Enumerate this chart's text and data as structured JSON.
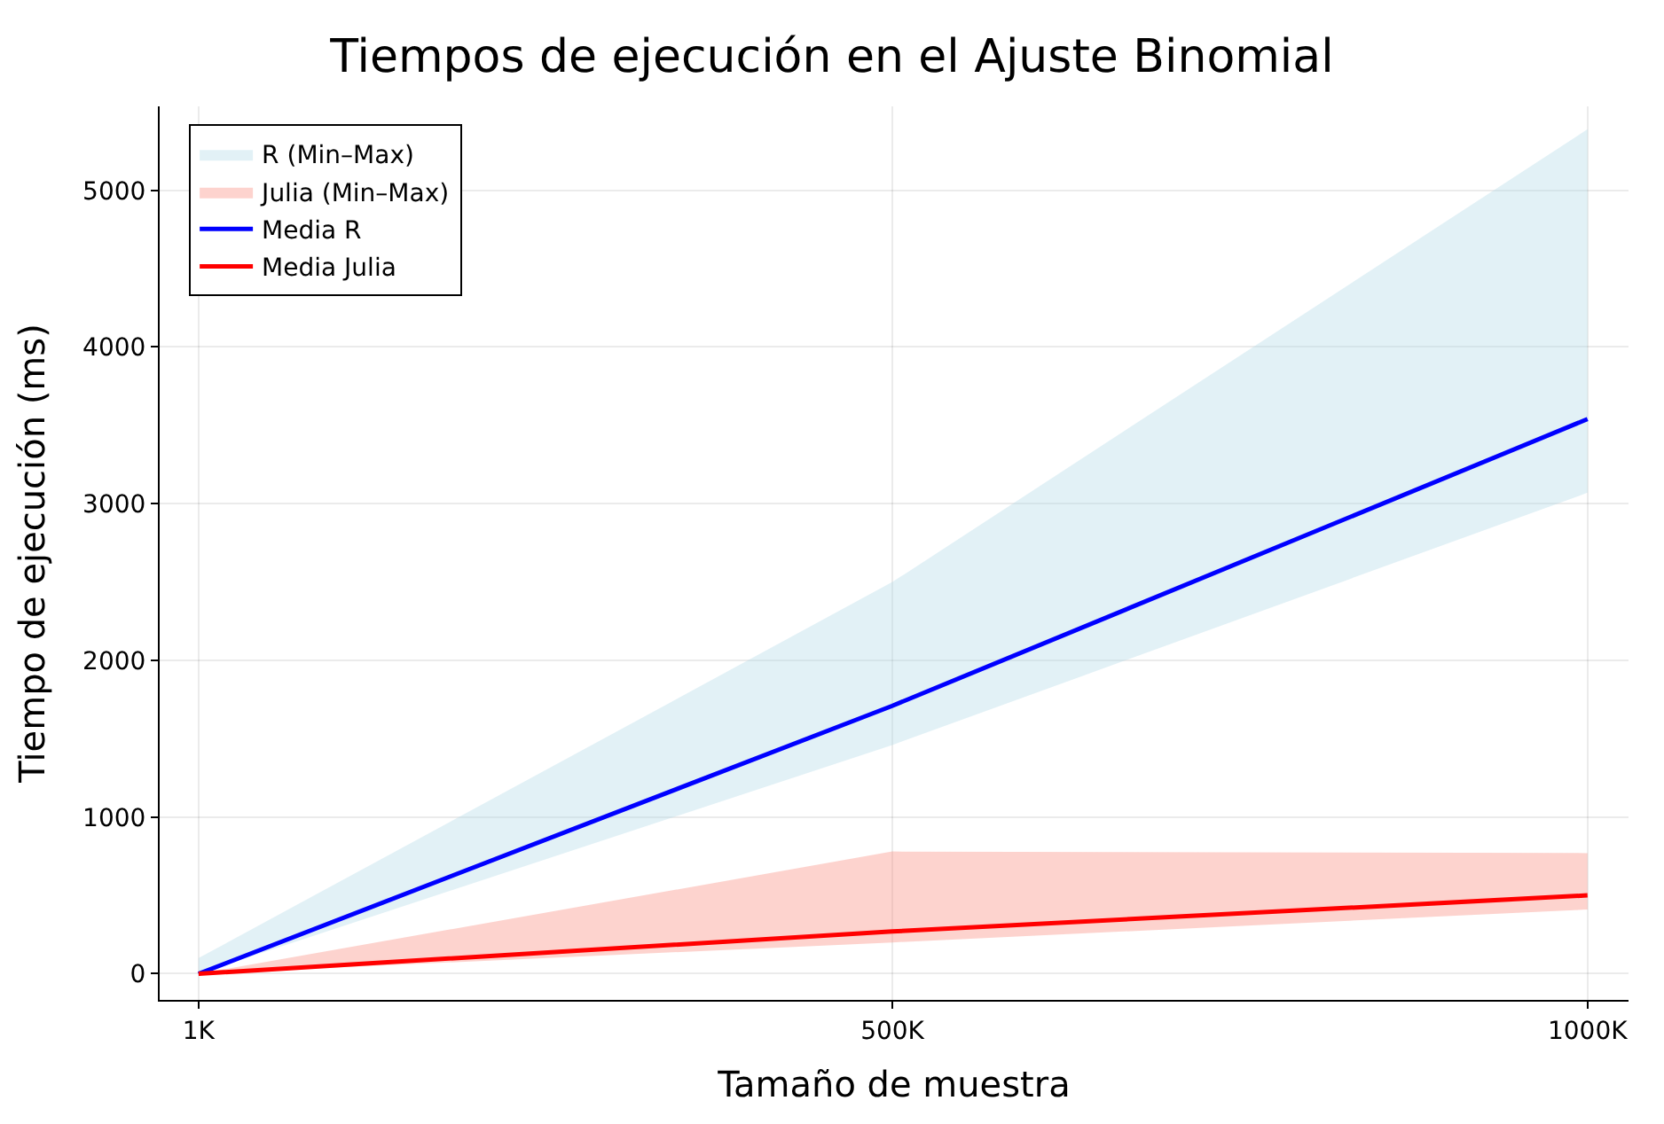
{
  "chart_data": {
    "type": "line",
    "title": "Tiempos de ejecución en el Ajuste Binomial",
    "xlabel": "Tamaño de muestra",
    "ylabel": "Tiempo de ejecución (ms)",
    "x": [
      1000,
      500000,
      1000000
    ],
    "series": [
      {
        "name": "R (Min–Max)",
        "color": "#add8e6",
        "values": [
          null,
          null,
          null
        ],
        "lower": [
          0,
          1460,
          3070
        ],
        "upper": [
          100,
          2500,
          5390
        ]
      },
      {
        "name": "Julia (Min–Max)",
        "color": "#fa8072",
        "values": [
          null,
          null,
          null
        ],
        "lower": [
          0,
          200,
          410
        ],
        "upper": [
          0,
          780,
          770
        ]
      },
      {
        "name": "Media R",
        "color": "#0000ff",
        "values": [
          0,
          1710,
          3540
        ]
      },
      {
        "name": "Media Julia",
        "color": "#ff0000",
        "values": [
          0,
          270,
          500
        ]
      }
    ],
    "xlim": [
      -27000,
      1029500
    ],
    "xticks": [
      {
        "value": 1000,
        "label": "1K"
      },
      {
        "value": 500000,
        "label": "500K"
      },
      {
        "value": 1000000,
        "label": "1000K"
      }
    ],
    "ylim": [
      -167,
      5536
    ],
    "yticks": [
      0,
      1000,
      2000,
      3000,
      4000,
      5000
    ],
    "grid": true,
    "legend": "top left",
    "marker": "none",
    "line_style": "solid"
  }
}
